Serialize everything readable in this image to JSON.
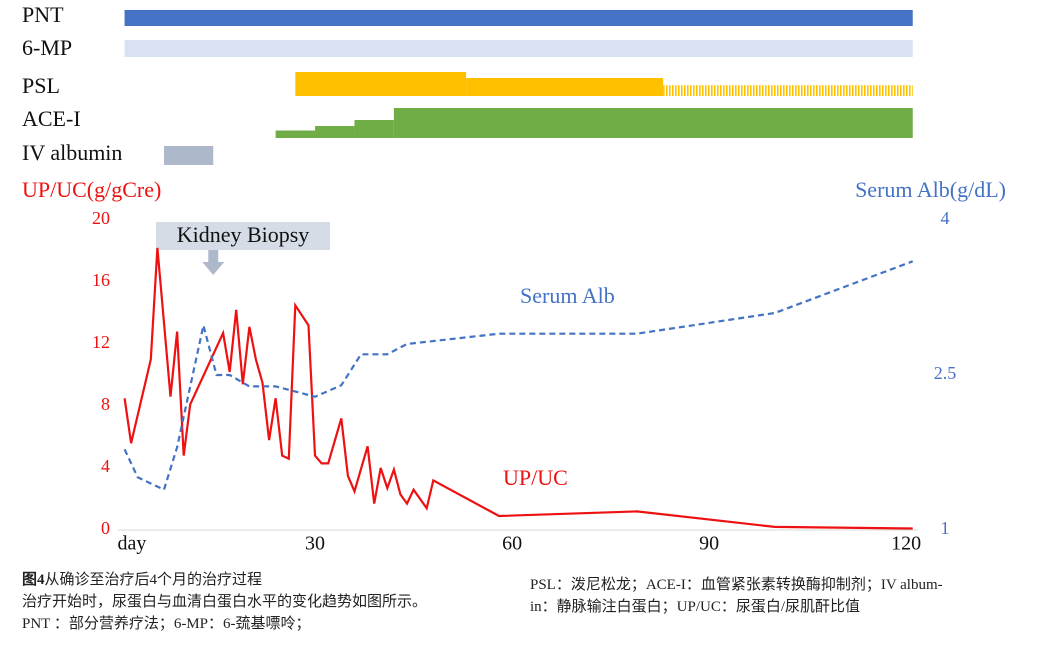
{
  "chart_data": [
    {
      "type": "gantt",
      "xlim": [
        0,
        121.8
      ],
      "rows": [
        {
          "name": "PNT",
          "color": "#4472c4",
          "segments": [
            {
              "start": 1,
              "end": 121,
              "level": 1
            }
          ]
        },
        {
          "name": "6-MP",
          "color": "#d9e2f3",
          "segments": [
            {
              "start": 1,
              "end": 121,
              "level": 1
            }
          ]
        },
        {
          "name": "PSL",
          "color": "#ffc000",
          "segments": [
            {
              "start": 27,
              "end": 53,
              "level": 1
            },
            {
              "start": 53,
              "end": 83,
              "level": 0.75
            },
            {
              "start": 83,
              "end": 121,
              "level": 0.45,
              "style": "hatched"
            }
          ]
        },
        {
          "name": "ACE-I",
          "color": "#70ad47",
          "segments": [
            {
              "start": 24,
              "end": 30,
              "level": 0.25
            },
            {
              "start": 30,
              "end": 36,
              "level": 0.4
            },
            {
              "start": 36,
              "end": 42,
              "level": 0.6
            },
            {
              "start": 42,
              "end": 121,
              "level": 1
            }
          ]
        },
        {
          "name": "IV albumin",
          "color": "#adb9ca",
          "segments": [
            {
              "start": 7,
              "end": 14.5,
              "level": 1
            }
          ]
        }
      ]
    },
    {
      "type": "line",
      "ylabel": "UP/UC(g/gCre)",
      "y2label": "Serum Alb(g/dL)",
      "xlim": [
        0,
        121.8
      ],
      "xticks": [
        {
          "value": 0,
          "label": "day"
        },
        30,
        60,
        90,
        120
      ],
      "ylim": [
        0,
        20
      ],
      "yticks": [
        0,
        4,
        8,
        12,
        16,
        20
      ],
      "y2lim": [
        1,
        4
      ],
      "y2ticks": [
        1,
        2.5,
        4
      ],
      "annotation": {
        "text": "Kidney Biopsy",
        "x": 14.5
      },
      "series": [
        {
          "name": "UP/UC",
          "color": "#ee1111",
          "x": [
            1,
            2,
            5,
            6,
            8,
            9,
            10,
            11,
            16,
            17,
            18,
            19,
            20,
            21,
            22,
            23,
            24,
            25,
            26,
            27,
            29,
            30,
            31,
            32,
            34,
            35,
            36,
            38,
            39,
            40,
            41,
            42,
            43,
            44,
            45,
            47,
            48,
            58,
            79,
            100,
            121
          ],
          "values": [
            8.5,
            5.6,
            11,
            18.2,
            8.6,
            12.8,
            4.8,
            8.1,
            12.7,
            10.2,
            14.2,
            9.4,
            13.1,
            11,
            9.5,
            5.8,
            8.5,
            4.8,
            4.6,
            14.5,
            13.2,
            4.8,
            4.3,
            4.3,
            7.2,
            3.5,
            2.5,
            5.4,
            1.7,
            4,
            2.7,
            3.9,
            2.3,
            1.7,
            2.6,
            1.4,
            3.2,
            0.9,
            1.2,
            0.2,
            0.1
          ]
        },
        {
          "name": "Serum Alb",
          "color": "#4472c4",
          "axis": "y2",
          "dashed": true,
          "x": [
            1,
            3,
            7,
            9,
            13,
            15,
            17,
            20,
            24,
            30,
            34,
            37,
            41,
            44,
            58,
            79,
            100,
            121
          ],
          "values": [
            1.78,
            1.51,
            1.39,
            1.8,
            2.98,
            2.5,
            2.5,
            2.39,
            2.39,
            2.29,
            2.4,
            2.7,
            2.7,
            2.8,
            2.9,
            2.9,
            3.1,
            3.6
          ]
        }
      ]
    }
  ],
  "caption": {
    "figure_label": "图4",
    "title": "从确诊至治疗后4个月的治疗过程",
    "description": "治疗开始时，尿蛋白与血清白蛋白水平的变化趋势如图所示。",
    "abbreviations": [
      "PNT ：部分营养疗法；6-MP：6-巯基嘌呤；",
      "PSL：泼尼松龙；ACE-I：血管紧张素转换酶抑制剂；IV album-",
      "in：静脉输注白蛋白；UP/UC：尿蛋白/尿肌酐比值"
    ]
  }
}
